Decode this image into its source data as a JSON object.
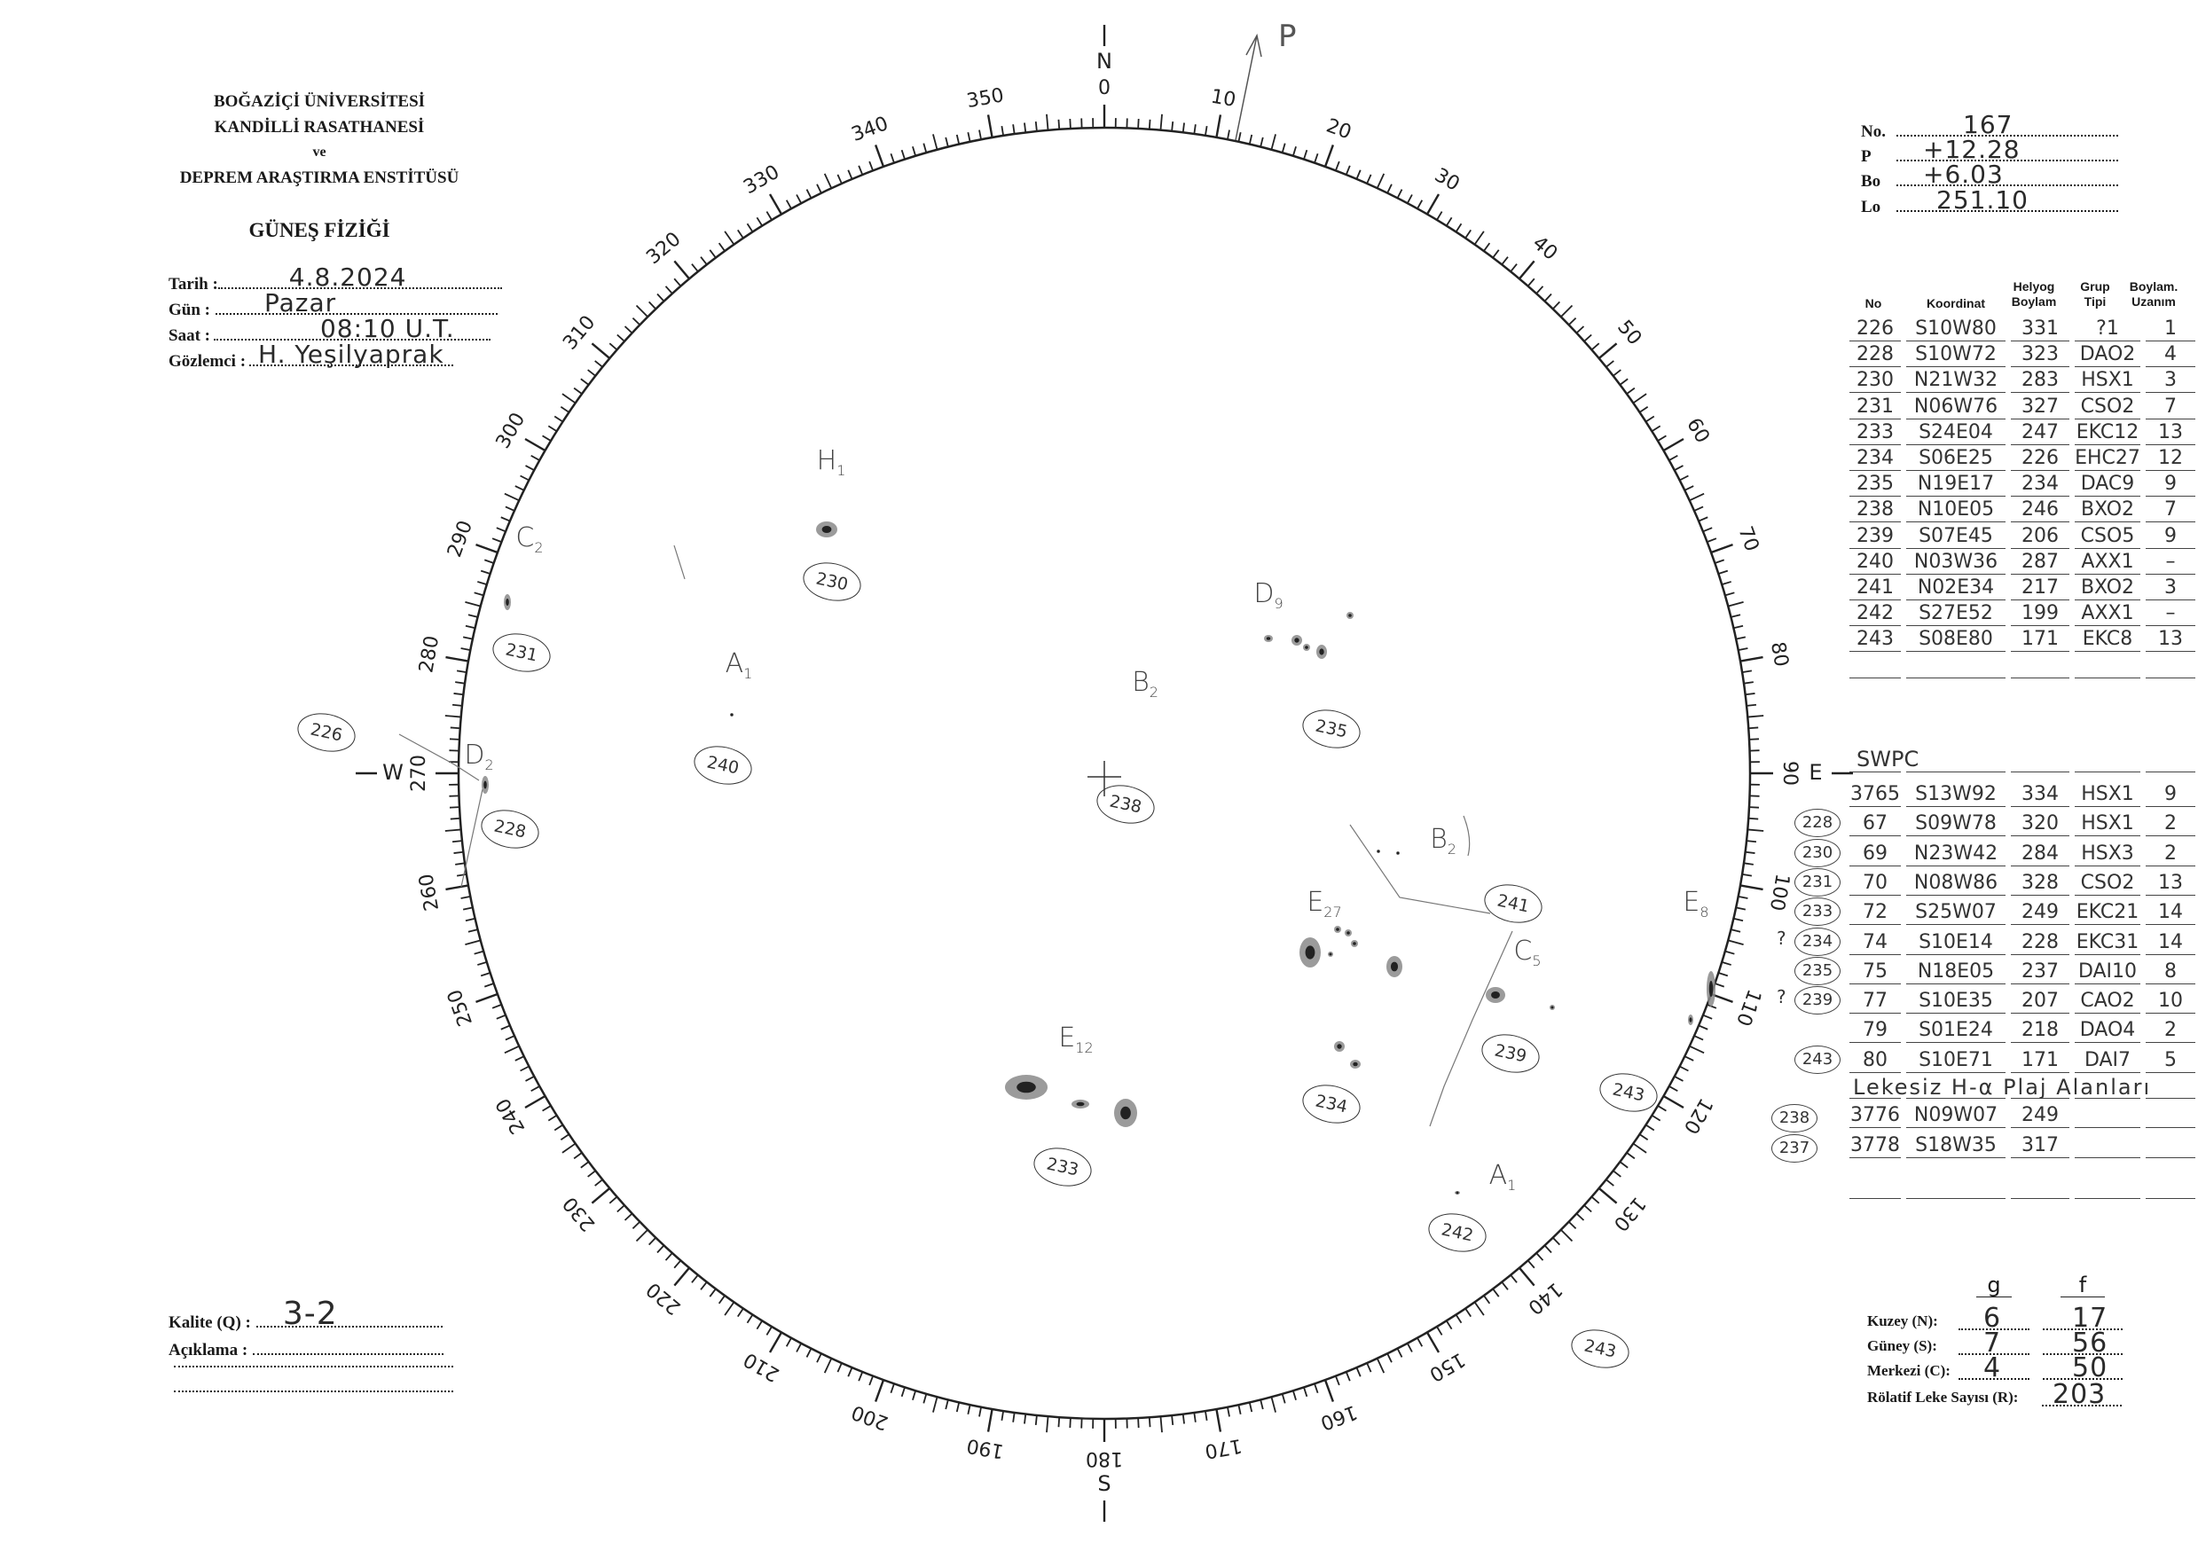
{
  "institution": {
    "line1": "BOĞAZİÇİ ÜNİVERSİTESİ",
    "line2": "KANDİLLİ RASATHANESİ",
    "line3": "ve",
    "line4": "DEPREM ARAŞTIRMA ENSTİTÜSÜ",
    "department": "GÜNEŞ FİZİĞİ"
  },
  "observation": {
    "date_label": "Tarih :",
    "date": "4.8.2024",
    "day_label": "Gün :",
    "day": "Pazar",
    "time_label": "Saat :",
    "time": "08:10 U.T.",
    "observer_label": "Gözlemci :",
    "observer": "H. Yeşilyaprak"
  },
  "quality": {
    "quality_label": "Kalite (Q) :",
    "quality": "3-2",
    "note_label": "Açıklama :"
  },
  "ephemeris": {
    "no_label": "No.",
    "no": "167",
    "p_label": "P",
    "p": "+12.28",
    "bo_label": "Bo",
    "bo": "+6.03",
    "lo_label": "Lo",
    "lo": "251.10"
  },
  "table_headers": {
    "no": "No",
    "coord": "Koordinat",
    "helio": "Helyog Boylam",
    "type": "Grup Tipi",
    "extent": "Boylam. Uzanım"
  },
  "groups": [
    {
      "no": "226",
      "coord": "S10W80",
      "lon": "331",
      "type": "?1",
      "ext": "1"
    },
    {
      "no": "228",
      "coord": "S10W72",
      "lon": "323",
      "type": "DAO2",
      "ext": "4"
    },
    {
      "no": "230",
      "coord": "N21W32",
      "lon": "283",
      "type": "HSX1",
      "ext": "3"
    },
    {
      "no": "231",
      "coord": "N06W76",
      "lon": "327",
      "type": "CSO2",
      "ext": "7"
    },
    {
      "no": "233",
      "coord": "S24E04",
      "lon": "247",
      "type": "EKC12",
      "ext": "13"
    },
    {
      "no": "234",
      "coord": "S06E25",
      "lon": "226",
      "type": "EHC27",
      "ext": "12"
    },
    {
      "no": "235",
      "coord": "N19E17",
      "lon": "234",
      "type": "DAC9",
      "ext": "9"
    },
    {
      "no": "238",
      "coord": "N10E05",
      "lon": "246",
      "type": "BXO2",
      "ext": "7"
    },
    {
      "no": "239",
      "coord": "S07E45",
      "lon": "206",
      "type": "CSO5",
      "ext": "9"
    },
    {
      "no": "240",
      "coord": "N03W36",
      "lon": "287",
      "type": "AXX1",
      "ext": "–"
    },
    {
      "no": "241",
      "coord": "N02E34",
      "lon": "217",
      "type": "BXO2",
      "ext": "3"
    },
    {
      "no": "242",
      "coord": "S27E52",
      "lon": "199",
      "type": "AXX1",
      "ext": "–"
    },
    {
      "no": "243",
      "coord": "S08E80",
      "lon": "171",
      "type": "EKC8",
      "ext": "13"
    }
  ],
  "swpc_label": "SWPC",
  "swpc": [
    {
      "ref": "",
      "mark": "",
      "no": "3765",
      "coord": "S13W92",
      "lon": "334",
      "type": "HSX1",
      "ext": "9"
    },
    {
      "ref": "228",
      "mark": "",
      "no": "67",
      "coord": "S09W78",
      "lon": "320",
      "type": "HSX1",
      "ext": "2"
    },
    {
      "ref": "230",
      "mark": "",
      "no": "69",
      "coord": "N23W42",
      "lon": "284",
      "type": "HSX3",
      "ext": "2"
    },
    {
      "ref": "231",
      "mark": "",
      "no": "70",
      "coord": "N08W86",
      "lon": "328",
      "type": "CSO2",
      "ext": "13"
    },
    {
      "ref": "233",
      "mark": "",
      "no": "72",
      "coord": "S25W07",
      "lon": "249",
      "type": "EKC21",
      "ext": "14"
    },
    {
      "ref": "234",
      "mark": "?",
      "no": "74",
      "coord": "S10E14",
      "lon": "228",
      "type": "EKC31",
      "ext": "14"
    },
    {
      "ref": "235",
      "mark": "",
      "no": "75",
      "coord": "N18E05",
      "lon": "237",
      "type": "DAI10",
      "ext": "8"
    },
    {
      "ref": "239",
      "mark": "?",
      "no": "77",
      "coord": "S10E35",
      "lon": "207",
      "type": "CAO2",
      "ext": "10"
    },
    {
      "ref": "",
      "mark": "",
      "no": "79",
      "coord": "S01E24",
      "lon": "218",
      "type": "DAO4",
      "ext": "2"
    },
    {
      "ref": "243",
      "mark": "",
      "no": "80",
      "coord": "S10E71",
      "lon": "171",
      "type": "DAI7",
      "ext": "5"
    }
  ],
  "plage_label": "Lekesiz H-α Plaj Alanları",
  "plages": [
    {
      "ref": "238",
      "no": "3776",
      "coord": "N09W07",
      "lon": "249"
    },
    {
      "ref": "237",
      "no": "3778",
      "coord": "S18W35",
      "lon": "317"
    }
  ],
  "counts": {
    "g_header": "g",
    "f_header": "f",
    "north_label": "Kuzey (N):",
    "north_g": "6",
    "north_f": "17",
    "south_label": "Güney (S):",
    "south_g": "7",
    "south_f": "56",
    "center_label": "Merkezi (C):",
    "center_g": "4",
    "center_f": "50",
    "r_label": "Rölatif Leke Sayısı (R):",
    "r": "203"
  },
  "disk": {
    "north": "N",
    "east": "E",
    "south": "S",
    "west": "W",
    "pole_label": "P",
    "degree_labels": [
      "0",
      "10",
      "20",
      "30",
      "40",
      "50",
      "60",
      "70",
      "80",
      "90",
      "100",
      "110",
      "120",
      "130",
      "140",
      "150",
      "160",
      "170",
      "180",
      "190",
      "200",
      "210",
      "220",
      "230",
      "240",
      "250",
      "260",
      "270",
      "280",
      "290",
      "300",
      "310",
      "320",
      "330",
      "340",
      "350"
    ],
    "group_labels": [
      {
        "letter": "H",
        "count": "1",
        "id": "230"
      },
      {
        "letter": "C",
        "count": "2",
        "id": "231"
      },
      {
        "letter": "A",
        "count": "1",
        "id": "240"
      },
      {
        "letter": "D",
        "count": "2",
        "id": "228"
      },
      {
        "letter": "B",
        "count": "2",
        "id": "238"
      },
      {
        "letter": "D",
        "count": "9",
        "id": "235"
      },
      {
        "letter": "B",
        "count": "2",
        "id": "241"
      },
      {
        "letter": "E",
        "count": "27",
        "id": "234"
      },
      {
        "letter": "C",
        "count": "5",
        "id": "239"
      },
      {
        "letter": "E",
        "count": "8",
        "id": "243"
      },
      {
        "letter": "E",
        "count": "12",
        "id": "233"
      },
      {
        "letter": "A",
        "count": "1",
        "id": "242"
      }
    ],
    "outside_ids": [
      "226",
      "243"
    ]
  }
}
